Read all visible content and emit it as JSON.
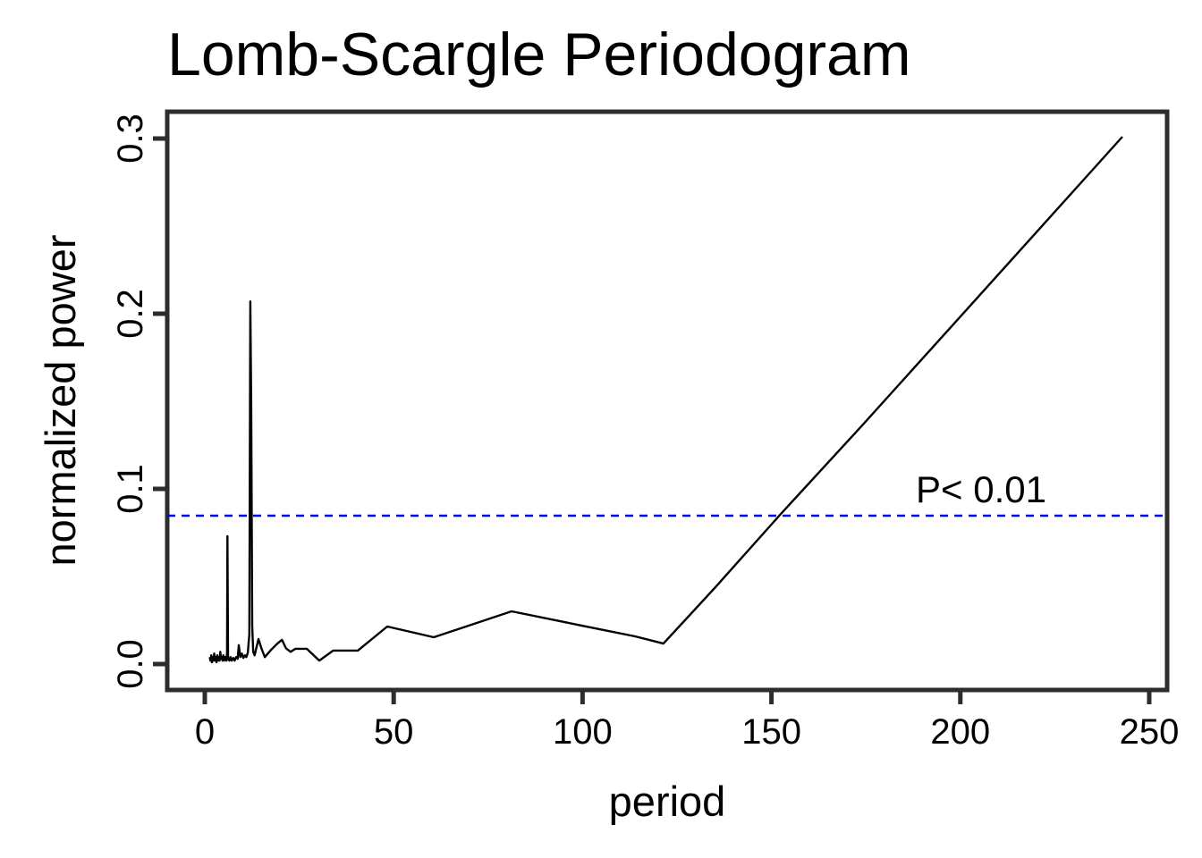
{
  "figure": {
    "background": "#ffffff",
    "frame_color": "#2d2d2d",
    "text_color": "#000000"
  },
  "chart_data": {
    "type": "line",
    "title": "Lomb-Scargle Periodogram",
    "xlabel": "period",
    "ylabel": "normalized power",
    "grid": false,
    "legend": "none",
    "x_axis": {
      "ticks": [
        0,
        50,
        100,
        150,
        200,
        250
      ],
      "lim": [
        -9.94,
        254.74
      ]
    },
    "y_axis": {
      "tick_labels": [
        "0.0",
        "0.1",
        "0.2",
        "0.3"
      ],
      "tick_values": [
        0,
        0.1,
        0.2,
        0.3
      ],
      "lim": [
        -0.0148,
        0.3153
      ]
    },
    "threshold_line": {
      "value": 0.0847,
      "style": "dashed",
      "color": "#0000FF",
      "meaning": "P< 0.01 significance level"
    },
    "annotations": [
      {
        "text": "P< 0.01",
        "x": 205.5,
        "y": 0.0995,
        "color": "#000000"
      }
    ],
    "series": [
      {
        "name": "normalized power",
        "color": "#000000",
        "points": [
          [
            1.3,
            0.004
          ],
          [
            1.5,
            0.002
          ],
          [
            1.7,
            0.005
          ],
          [
            1.9,
            0.001
          ],
          [
            2.1,
            0.004
          ],
          [
            2.3,
            0.002
          ],
          [
            2.5,
            0.006
          ],
          [
            2.7,
            0.002
          ],
          [
            2.9,
            0.004
          ],
          [
            3.1,
            0.001
          ],
          [
            3.3,
            0.005
          ],
          [
            3.5,
            0.002
          ],
          [
            3.7,
            0.004
          ],
          [
            3.9,
            0.002
          ],
          [
            4.1,
            0.007
          ],
          [
            4.3,
            0.003
          ],
          [
            4.5,
            0.004
          ],
          [
            4.7,
            0.002
          ],
          [
            4.9,
            0.005
          ],
          [
            5.1,
            0.002
          ],
          [
            5.3,
            0.004
          ],
          [
            5.5,
            0.003
          ],
          [
            5.7,
            0.002
          ],
          [
            5.9,
            0.0065
          ],
          [
            6.0,
            0.073
          ],
          [
            6.15,
            0.003
          ],
          [
            6.5,
            0.002
          ],
          [
            6.8,
            0.004
          ],
          [
            7.1,
            0.002
          ],
          [
            7.5,
            0.0035
          ],
          [
            7.9,
            0.002
          ],
          [
            8.3,
            0.004
          ],
          [
            8.7,
            0.003
          ],
          [
            9.0,
            0.0107
          ],
          [
            9.4,
            0.004
          ],
          [
            9.8,
            0.006
          ],
          [
            10.2,
            0.0035
          ],
          [
            10.6,
            0.005
          ],
          [
            11.0,
            0.004
          ],
          [
            11.4,
            0.0065
          ],
          [
            11.8,
            0.017
          ],
          [
            12.05,
            0.207
          ],
          [
            12.3,
            0.146
          ],
          [
            12.55,
            0.022
          ],
          [
            12.8,
            0.007
          ],
          [
            13.2,
            0.005
          ],
          [
            14.2,
            0.0143
          ],
          [
            15.0,
            0.009
          ],
          [
            15.9,
            0.004
          ],
          [
            17.5,
            0.008
          ],
          [
            19.2,
            0.0117
          ],
          [
            20.4,
            0.0138
          ],
          [
            21.5,
            0.009
          ],
          [
            22.7,
            0.007
          ],
          [
            24.0,
            0.0087
          ],
          [
            27.0,
            0.0087
          ],
          [
            30.3,
            0.002
          ],
          [
            34.0,
            0.0077
          ],
          [
            40.5,
            0.0077
          ],
          [
            48.3,
            0.0214
          ],
          [
            60.6,
            0.0153
          ],
          [
            81.2,
            0.0301
          ],
          [
            99.7,
            0.022
          ],
          [
            113.9,
            0.0158
          ],
          [
            121.4,
            0.0117
          ],
          [
            135.2,
            0.044
          ],
          [
            152.7,
            0.0862
          ],
          [
            173.5,
            0.135
          ],
          [
            202.4,
            0.204
          ],
          [
            242.9,
            0.301
          ]
        ]
      }
    ]
  }
}
